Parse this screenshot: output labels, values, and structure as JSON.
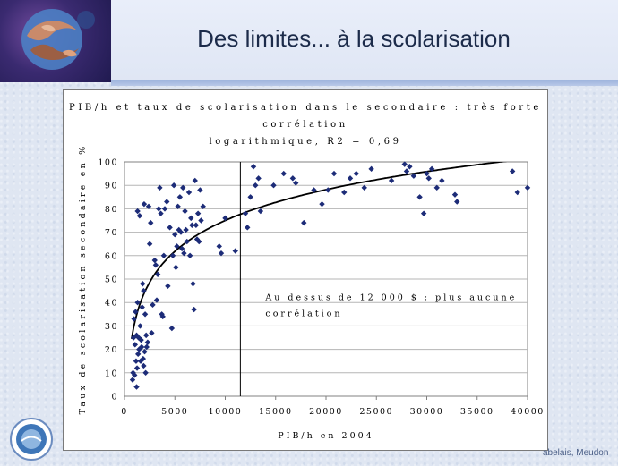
{
  "slide": {
    "title": "Des limites... à la scolarisation",
    "footer_right": "abelais, Meudon"
  },
  "colors": {
    "point": "#1d2c78",
    "curve": "#000000",
    "title_text": "#1c2b4a"
  },
  "chart_data": {
    "type": "scatter",
    "title_line1": "PIB/h et taux de scolarisation dans le secondaire : très forte corrélation",
    "title_line2": "logarithmique, R2 = 0,69",
    "xlabel": "PIB/h en 2004",
    "ylabel": "Taux de scolarisation secondaire en %",
    "xlim": [
      0,
      40000
    ],
    "ylim": [
      0,
      100
    ],
    "xticks": [
      0,
      5000,
      10000,
      15000,
      20000,
      25000,
      30000,
      35000,
      40000
    ],
    "yticks": [
      0,
      10,
      20,
      30,
      40,
      50,
      60,
      70,
      80,
      90,
      100
    ],
    "gridlines": "horizontal",
    "vline_x": 11500,
    "annotation_line1": "Au dessus de 12 000 $ : plus aucune",
    "annotation_line2": "corrélation",
    "trend": {
      "type": "logarithmic",
      "a": 19.0,
      "b": -100.0,
      "x_start": 700
    },
    "points": [
      [
        800,
        7
      ],
      [
        850,
        10
      ],
      [
        900,
        25
      ],
      [
        950,
        33
      ],
      [
        1000,
        9
      ],
      [
        1050,
        22
      ],
      [
        1100,
        36
      ],
      [
        1150,
        15
      ],
      [
        1200,
        4
      ],
      [
        1200,
        26
      ],
      [
        1250,
        12
      ],
      [
        1300,
        40
      ],
      [
        1300,
        79
      ],
      [
        1350,
        18
      ],
      [
        1400,
        25
      ],
      [
        1450,
        20
      ],
      [
        1500,
        77
      ],
      [
        1550,
        30
      ],
      [
        1600,
        15
      ],
      [
        1650,
        24
      ],
      [
        1700,
        21
      ],
      [
        1750,
        38
      ],
      [
        1800,
        48
      ],
      [
        1850,
        16
      ],
      [
        1900,
        13
      ],
      [
        1900,
        45
      ],
      [
        1950,
        82
      ],
      [
        2000,
        19
      ],
      [
        2050,
        35
      ],
      [
        2100,
        10
      ],
      [
        2150,
        26
      ],
      [
        2200,
        21
      ],
      [
        2300,
        23
      ],
      [
        2400,
        81
      ],
      [
        2500,
        65
      ],
      [
        2600,
        74
      ],
      [
        2700,
        27
      ],
      [
        2800,
        39
      ],
      [
        3000,
        58
      ],
      [
        3100,
        56
      ],
      [
        3200,
        41
      ],
      [
        3300,
        52
      ],
      [
        3400,
        80
      ],
      [
        3500,
        89
      ],
      [
        3600,
        78
      ],
      [
        3700,
        35
      ],
      [
        3800,
        34
      ],
      [
        3900,
        60
      ],
      [
        4000,
        80
      ],
      [
        4200,
        83
      ],
      [
        4300,
        47
      ],
      [
        4500,
        72
      ],
      [
        4700,
        29
      ],
      [
        4800,
        60
      ],
      [
        4900,
        90
      ],
      [
        5000,
        69
      ],
      [
        5100,
        55
      ],
      [
        5200,
        64
      ],
      [
        5300,
        81
      ],
      [
        5400,
        71
      ],
      [
        5500,
        85
      ],
      [
        5600,
        70
      ],
      [
        5700,
        63
      ],
      [
        5800,
        89
      ],
      [
        5900,
        61
      ],
      [
        6000,
        79
      ],
      [
        6100,
        71
      ],
      [
        6200,
        66
      ],
      [
        6400,
        87
      ],
      [
        6500,
        60
      ],
      [
        6600,
        76
      ],
      [
        6700,
        73
      ],
      [
        6800,
        48
      ],
      [
        6900,
        37
      ],
      [
        7000,
        92
      ],
      [
        7100,
        73
      ],
      [
        7200,
        67
      ],
      [
        7300,
        78
      ],
      [
        7400,
        66
      ],
      [
        7500,
        88
      ],
      [
        7600,
        75
      ],
      [
        7800,
        81
      ],
      [
        9400,
        64
      ],
      [
        9600,
        61
      ],
      [
        10000,
        76
      ],
      [
        11000,
        62
      ],
      [
        12000,
        78
      ],
      [
        12200,
        72
      ],
      [
        12500,
        85
      ],
      [
        12800,
        98
      ],
      [
        13000,
        90
      ],
      [
        13300,
        93
      ],
      [
        13500,
        79
      ],
      [
        14800,
        90
      ],
      [
        15800,
        95
      ],
      [
        16700,
        93
      ],
      [
        17000,
        91
      ],
      [
        17800,
        74
      ],
      [
        18800,
        88
      ],
      [
        19600,
        82
      ],
      [
        20200,
        88
      ],
      [
        20800,
        95
      ],
      [
        21800,
        87
      ],
      [
        22400,
        93
      ],
      [
        23000,
        95
      ],
      [
        23800,
        89
      ],
      [
        24500,
        97
      ],
      [
        26500,
        92
      ],
      [
        27800,
        99
      ],
      [
        28000,
        96
      ],
      [
        28300,
        98
      ],
      [
        28700,
        94
      ],
      [
        29300,
        85
      ],
      [
        29700,
        78
      ],
      [
        30000,
        95
      ],
      [
        30200,
        93
      ],
      [
        30500,
        97
      ],
      [
        31000,
        89
      ],
      [
        31500,
        92
      ],
      [
        32800,
        86
      ],
      [
        33000,
        83
      ],
      [
        38500,
        96
      ],
      [
        39000,
        87
      ],
      [
        40000,
        89
      ]
    ]
  }
}
